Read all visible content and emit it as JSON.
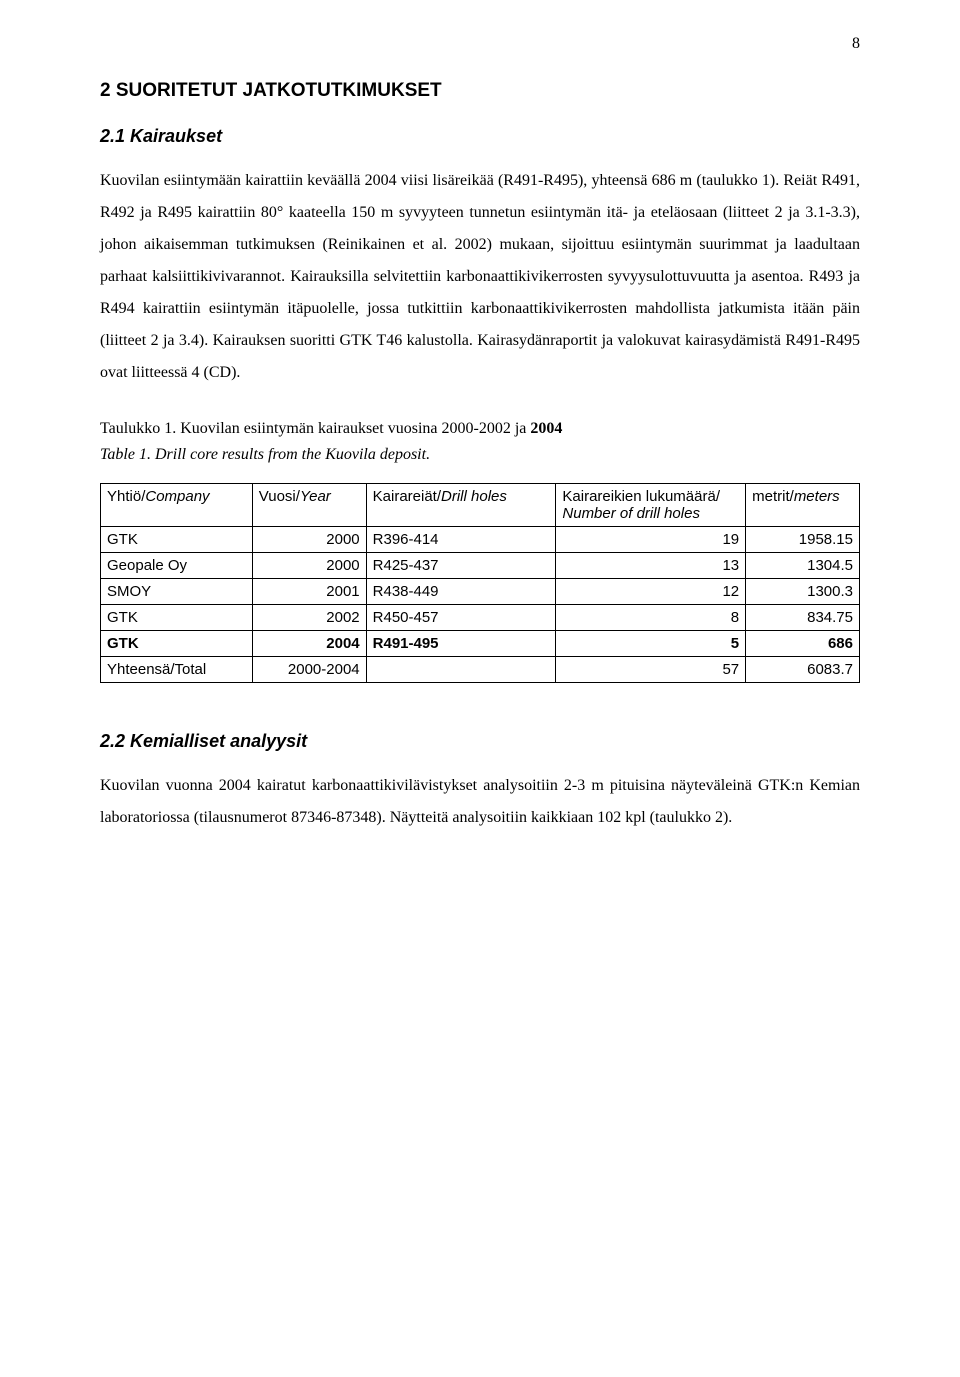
{
  "page_number": "8",
  "heading_main": "2   SUORITETUT JATKOTUTKIMUKSET",
  "heading_sub1": "2.1  Kairaukset",
  "paragraph1": "Kuovilan esiintymään kairattiin keväällä 2004 viisi lisäreikää (R491-R495), yhteensä 686 m (taulukko 1). Reiät R491, R492 ja R495 kairattiin 80° kaateella 150 m syvyyteen tunnetun esiintymän itä- ja eteläosaan (liitteet 2 ja 3.1-3.3), johon aikaisemman tutkimuksen (Reinikainen et al. 2002) mukaan, sijoittuu esiintymän suurimmat ja laadultaan parhaat kalsiittikivivarannot. Kairauksilla selvitettiin karbonaattikivikerrosten syvyysulottuvuutta ja asentoa. R493 ja R494 kairattiin esiintymän itäpuolelle, jossa tutkittiin karbonaattikivikerrosten mahdollista jatkumista itään päin (liitteet 2 ja 3.4). Kairauksen suoritti GTK T46 kalustolla. Kairasydänraportit ja valokuvat kairasydämistä R491-R495 ovat liitteessä 4 (CD).",
  "caption1_plain": "Taulukko 1. Kuovilan esiintymän kairaukset vuosina 2000-2002 ja",
  "caption1_bold": " 2004",
  "caption1_italic": "Table 1. Drill core results from the Kuovila deposit.",
  "table": {
    "headers": {
      "c0a": "Yhtiö/",
      "c0b": "Company",
      "c1a": "Vuosi/",
      "c1b": "Year",
      "c2a": "Kairareiät/",
      "c2b": "Drill holes",
      "c3line1a": "Kairareikien",
      "c3line1b_spaces": "     ",
      "c3line1c": "lukumäärä/",
      "c3line2": "Number of drill holes",
      "c4a": "metrit/",
      "c4b": "meters"
    },
    "rows": [
      {
        "company": "GTK",
        "year": "2000",
        "holes": "R396-414",
        "count": "19",
        "meters": "1958.15",
        "bold": false
      },
      {
        "company": "Geopale Oy",
        "year": "2000",
        "holes": "R425-437",
        "count": "13",
        "meters": "1304.5",
        "bold": false
      },
      {
        "company": "SMOY",
        "year": "2001",
        "holes": "R438-449",
        "count": "12",
        "meters": "1300.3",
        "bold": false
      },
      {
        "company": "GTK",
        "year": "2002",
        "holes": "R450-457",
        "count": "8",
        "meters": "834.75",
        "bold": false
      },
      {
        "company": "GTK",
        "year": "2004",
        "holes": "R491-495",
        "count": "5",
        "meters": "686",
        "bold": true
      },
      {
        "company": "Yhteensä/Total",
        "year": "2000-2004",
        "holes": "",
        "count": "57",
        "meters": "6083.7",
        "bold": false
      }
    ],
    "col_widths": [
      "20%",
      "15%",
      "25%",
      "25%",
      "15%"
    ]
  },
  "heading_sub2": "2.2  Kemialliset analyysit",
  "paragraph2": "Kuovilan vuonna 2004 kairatut karbonaattikivilävistykset analysoitiin 2-3 m pituisina näyteväleinä GTK:n Kemian laboratoriossa (tilausnumerot 87346-87348). Näytteitä analysoitiin kaikkiaan 102 kpl (taulukko 2)."
}
